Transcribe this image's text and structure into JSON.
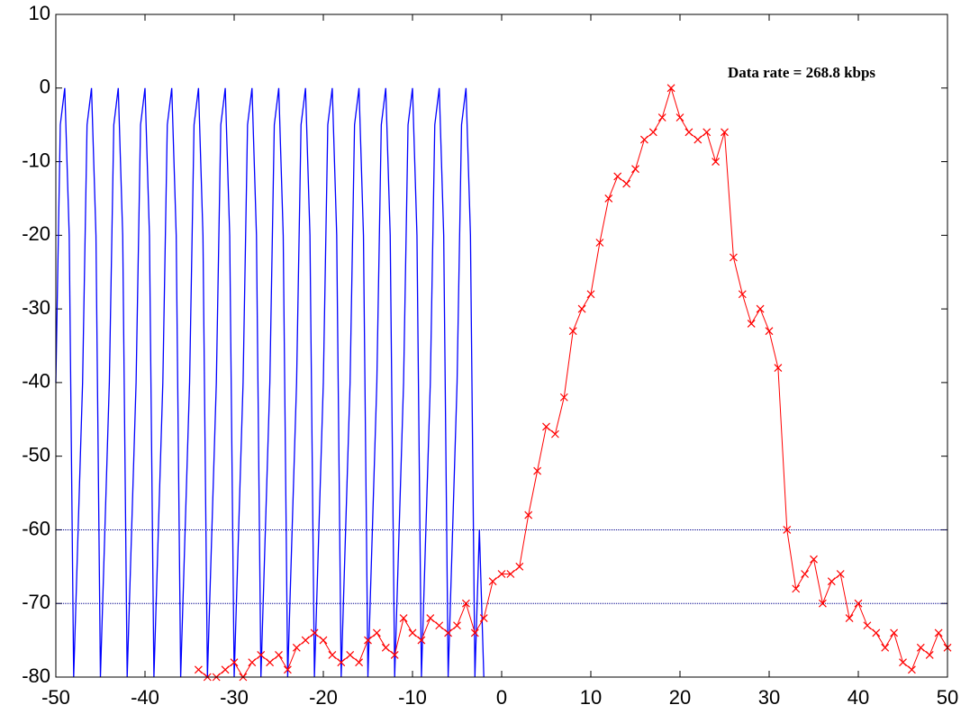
{
  "chart_data": {
    "type": "line",
    "annotation": "Data rate = 268.8 kbps",
    "xlim": [
      -50,
      50
    ],
    "xticks": [
      -50,
      -40,
      -30,
      -20,
      -10,
      0,
      10,
      20,
      30,
      40,
      50
    ],
    "ylim": [
      -80,
      10
    ],
    "yticks": [
      10,
      0,
      -10,
      -20,
      -30,
      -40,
      -50,
      -60,
      -70,
      -80
    ],
    "grid": false,
    "hlines": [
      -60,
      -70
    ],
    "hline_color": "#00008b",
    "series": [
      {
        "color": "#0000ff",
        "marker": "none",
        "x": [
          -50,
          -49.5,
          -49,
          -48.5,
          -48,
          -47.5,
          -47,
          -46.5,
          -46,
          -45.5,
          -45,
          -44.5,
          -44,
          -43.5,
          -43,
          -42.5,
          -42,
          -41.5,
          -41,
          -40.5,
          -40,
          -39.5,
          -39,
          -38.5,
          -38,
          -37.5,
          -37,
          -36.5,
          -36,
          -35.5,
          -35,
          -34.5,
          -34,
          -33.5,
          -33,
          -32.5,
          -32,
          -31.5,
          -31,
          -30.5,
          -30,
          -29.5,
          -29,
          -28.5,
          -28,
          -27.5,
          -27,
          -26.5,
          -26,
          -25.5,
          -25,
          -24.5,
          -24,
          -23.5,
          -23,
          -22.5,
          -22,
          -21.5,
          -21,
          -20.5,
          -20,
          -19.5,
          -19,
          -18.5,
          -18,
          -17.5,
          -17,
          -16.5,
          -16,
          -15.5,
          -15,
          -14.5,
          -14,
          -13.5,
          -13,
          -12.5,
          -12,
          -11.5,
          -11,
          -10.5,
          -10,
          -9.5,
          -9,
          -8.5,
          -8,
          -7.5,
          -7,
          -6.5,
          -6,
          -5.5,
          -5,
          -4.5,
          -4,
          -3.5,
          -3,
          -2.5,
          -2
        ],
        "values": [
          -40,
          -5,
          0,
          -20,
          -80,
          -60,
          -40,
          -5,
          0,
          -20,
          -80,
          -60,
          -40,
          -5,
          0,
          -20,
          -80,
          -60,
          -40,
          -5,
          0,
          -20,
          -80,
          -60,
          -40,
          -5,
          0,
          -20,
          -80,
          -60,
          -40,
          -5,
          0,
          -20,
          -80,
          -60,
          -40,
          -5,
          0,
          -20,
          -80,
          -60,
          -40,
          -5,
          0,
          -20,
          -80,
          -60,
          -40,
          -5,
          0,
          -20,
          -80,
          -60,
          -40,
          -5,
          0,
          -20,
          -80,
          -60,
          -40,
          -5,
          0,
          -20,
          -80,
          -60,
          -40,
          -5,
          0,
          -20,
          -80,
          -60,
          -40,
          -5,
          0,
          -20,
          -80,
          -60,
          -40,
          -5,
          0,
          -20,
          -80,
          -60,
          -40,
          -5,
          0,
          -20,
          -80,
          -60,
          -40,
          -5,
          0,
          -20,
          -80,
          -60,
          -80
        ]
      },
      {
        "color": "#ff0000",
        "marker": "x",
        "x": [
          -34,
          -33,
          -32,
          -31,
          -30,
          -29,
          -28,
          -27,
          -26,
          -25,
          -24,
          -23,
          -22,
          -21,
          -20,
          -19,
          -18,
          -17,
          -16,
          -15,
          -14,
          -13,
          -12,
          -11,
          -10,
          -9,
          -8,
          -7,
          -6,
          -5,
          -4,
          -3,
          -2,
          -1,
          0,
          1,
          2,
          3,
          4,
          5,
          6,
          7,
          8,
          9,
          10,
          11,
          12,
          13,
          14,
          15,
          16,
          17,
          18,
          19,
          20,
          21,
          22,
          23,
          24,
          25,
          26,
          27,
          28,
          29,
          30,
          31,
          32,
          33,
          34,
          35,
          36,
          37,
          38,
          39,
          40,
          41,
          42,
          43,
          44,
          45,
          46,
          47,
          48,
          49,
          50
        ],
        "values": [
          -79,
          -80,
          -80,
          -79,
          -78,
          -80,
          -78,
          -77,
          -78,
          -77,
          -79,
          -76,
          -75,
          -74,
          -75,
          -77,
          -78,
          -77,
          -78,
          -75,
          -74,
          -76,
          -77,
          -72,
          -74,
          -75,
          -72,
          -73,
          -74,
          -73,
          -70,
          -74,
          -72,
          -67,
          -66,
          -66,
          -65,
          -58,
          -52,
          -46,
          -47,
          -42,
          -33,
          -30,
          -28,
          -21,
          -15,
          -12,
          -13,
          -11,
          -7,
          -6,
          -4,
          0,
          -4,
          -6,
          -7,
          -6,
          -10,
          -6,
          -23,
          -28,
          -32,
          -30,
          -33,
          -38,
          -60,
          -68,
          -66,
          -64,
          -70,
          -67,
          -66,
          -72,
          -70,
          -73,
          -74,
          -76,
          -74,
          -78,
          -79,
          -76,
          -77,
          -74,
          -76
        ]
      }
    ]
  }
}
